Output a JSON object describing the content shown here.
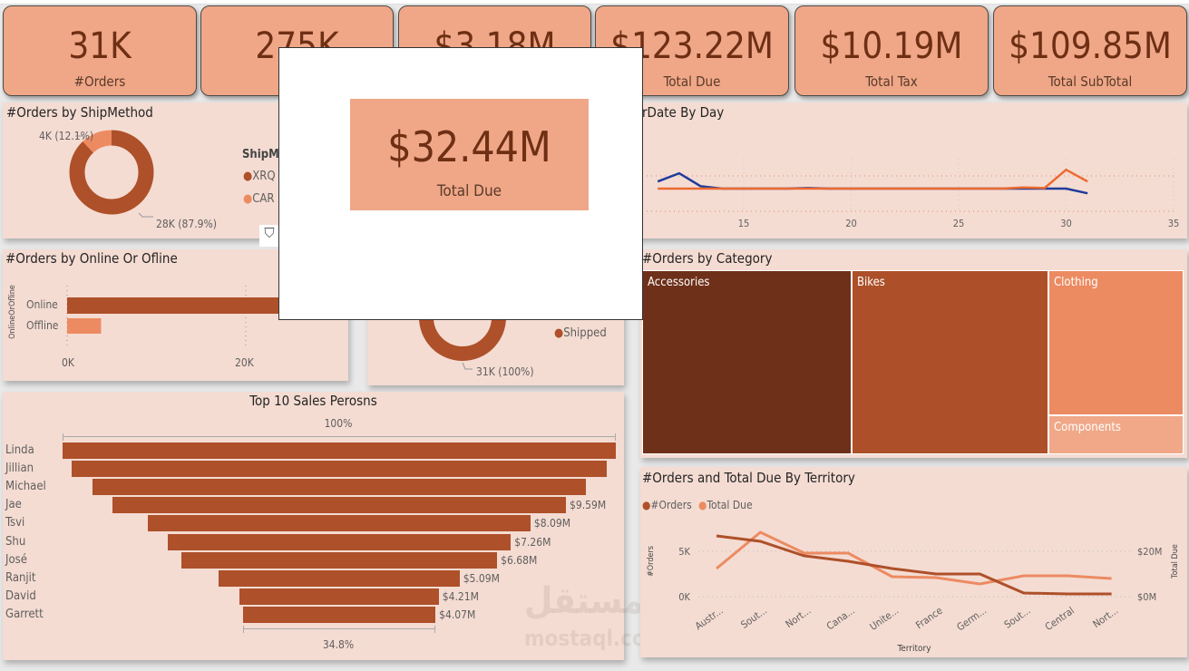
{
  "kpis": [
    {
      "value": "31K",
      "label": "#Orders"
    },
    {
      "value": "275K",
      "label": ""
    },
    {
      "value": "$3.18M",
      "label": ""
    },
    {
      "value": "$123.22M",
      "label": "Total Due"
    },
    {
      "value": "$10.19M",
      "label": "Total Tax"
    },
    {
      "value": "$109.85M",
      "label": "Total SubTotal"
    }
  ],
  "popup": {
    "value": "$32.44M",
    "label": "Total Due"
  },
  "colors": {
    "card": "#EFA787",
    "panel": "#F4DCD3",
    "dark": "#AE5029",
    "light": "#EC8B62",
    "darkest": "#6F301A",
    "pale": "#F0A888",
    "blue": "#1F3C99"
  },
  "shipmethod": {
    "title": "#Orders by ShipMethod",
    "legend_title": "ShipM",
    "legend": [
      "XRQ",
      "CAR"
    ],
    "slices": [
      {
        "value": 28,
        "label": "28K (87.9%)",
        "pct": 87.9
      },
      {
        "value": 4,
        "label": "4K (12.1%)",
        "pct": 12.1
      }
    ],
    "filter_icon": "funnel-icon"
  },
  "online": {
    "title": "#Orders by Online Or Ofline",
    "axis_title": "OnlineOrOfline",
    "categories": [
      "Online",
      "Offline"
    ],
    "values": [
      27.7,
      3.8
    ],
    "ticks": [
      "0K",
      "20K"
    ]
  },
  "status": {
    "legend": [
      "Shipped"
    ],
    "label": "31K (100%)"
  },
  "daychart": {
    "title": "rDate By Day",
    "ticks": [
      "15",
      "20",
      "25",
      "30",
      "35"
    ]
  },
  "category": {
    "title": "#Orders by Category",
    "items": [
      "Accessories",
      "Bikes",
      "Clothing",
      "Components"
    ]
  },
  "funnel": {
    "title": "Top 10 Sales Perosns",
    "top_label": "100%",
    "bottom_label": "34.8%",
    "names": [
      "Linda",
      "Jillian",
      "Michael",
      "Jae",
      "Tsvi",
      "Shu",
      "José",
      "Ranjit",
      "David",
      "Garrett"
    ],
    "values": [
      11.7,
      11.31,
      10.43,
      9.59,
      8.09,
      7.26,
      6.68,
      5.09,
      4.21,
      4.07
    ],
    "labels": [
      "",
      "",
      "",
      "$9.59M",
      "$8.09M",
      "$7.26M",
      "$6.68M",
      "$5.09M",
      "$4.21M",
      "$4.07M"
    ]
  },
  "chart_data": [
    {
      "type": "line",
      "title": "rDate By Day",
      "x": [
        10,
        11,
        12,
        13,
        14,
        15,
        16,
        17,
        18,
        19,
        20,
        21,
        22,
        23,
        24,
        25,
        26,
        27,
        28,
        29,
        30,
        31
      ],
      "xlim": [
        10,
        35
      ],
      "xticks": [
        15,
        20,
        25,
        30,
        35
      ],
      "series": [
        {
          "color": "#1F3C99",
          "values": [
            1.1,
            1.6,
            2.3,
            1.2,
            1.0,
            1.0,
            1.0,
            1.0,
            1.05,
            1.0,
            1.0,
            1.0,
            1.0,
            1.0,
            1.0,
            1.0,
            1.0,
            1.0,
            1.0,
            1.0,
            1.0,
            0.6
          ]
        },
        {
          "color": "#EC6A30",
          "values": [
            1.0,
            1.0,
            1.0,
            1.0,
            1.0,
            1.0,
            1.0,
            1.0,
            1.0,
            1.0,
            1.0,
            1.0,
            1.0,
            1.0,
            1.0,
            1.0,
            1.0,
            1.0,
            1.1,
            1.05,
            2.6,
            1.6
          ]
        }
      ]
    },
    {
      "type": "line",
      "title": "#Orders and Total Due By Territory",
      "xlabel": "Territory",
      "ylabel": "#Orders",
      "y2label": "Total Due",
      "categories": [
        "Austr...",
        "Sout...",
        "Nort...",
        "Cana...",
        "Unite...",
        "France",
        "Germ...",
        "Sout...",
        "Central",
        "Nort..."
      ],
      "yticks": [
        "0K",
        "5K"
      ],
      "y2ticks": [
        "$0M",
        "$20M"
      ],
      "legend": "top-left",
      "series": [
        {
          "name": "#Orders",
          "axis": "left",
          "unit": "K",
          "color": "#AE5029",
          "values": [
            6.7,
            6.1,
            4.5,
            3.9,
            3.1,
            2.5,
            2.5,
            0.4,
            0.3,
            0.3
          ]
        },
        {
          "name": "Total Due",
          "axis": "right",
          "unit": "$M",
          "color": "#EC8B62",
          "values": [
            12.4,
            28.4,
            19.2,
            19.2,
            8.8,
            8.4,
            5.6,
            9.2,
            9.2,
            8.0
          ]
        }
      ]
    }
  ],
  "watermark": {
    "text": "مستقل",
    "sub": "mostaql.com"
  }
}
